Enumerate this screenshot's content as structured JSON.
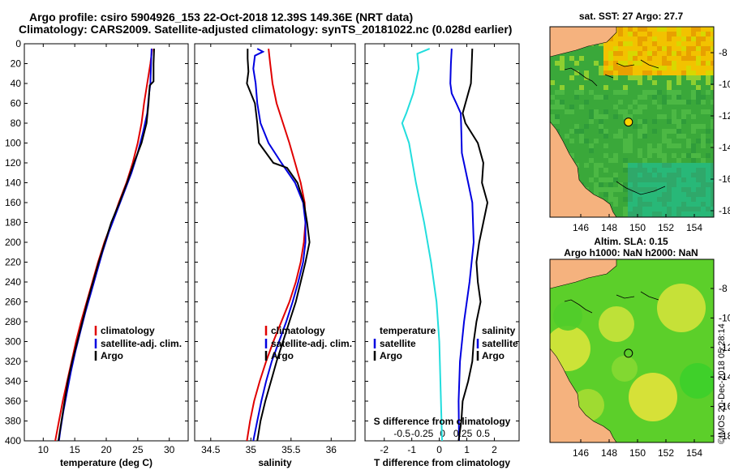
{
  "title": {
    "line1": "Argo profile: csiro 5904926_153 22-Oct-2018 12.39S 149.36E (NRT data)",
    "line2": "Climatology: CARS2009. Satellite-adjusted climatology: synTS_20181022.nc (0.028d earlier)"
  },
  "colors": {
    "climatology": "#e00000",
    "satellite": "#0000e0",
    "argo": "#000000",
    "sat_t": "#22dddd",
    "land": "#f5b27e"
  },
  "depth_ticks": [
    "0",
    "20",
    "40",
    "60",
    "80",
    "100",
    "120",
    "140",
    "160",
    "180",
    "200",
    "220",
    "240",
    "260",
    "280",
    "300",
    "320",
    "340",
    "360",
    "380",
    "400"
  ],
  "chart_data": [
    {
      "type": "line",
      "title": "",
      "xlabel": "temperature (deg C)",
      "ylabel": "depth",
      "xlim": [
        7,
        33
      ],
      "ylim": [
        0,
        400
      ],
      "xticks": [
        10,
        15,
        20,
        25,
        30
      ],
      "legend": [
        "climatology",
        "satellite-adj. clim.",
        "Argo"
      ],
      "series": [
        {
          "name": "climatology",
          "color": "#e00000",
          "points": [
            [
              27.3,
              5
            ],
            [
              27.0,
              20
            ],
            [
              26.5,
              40
            ],
            [
              26.0,
              60
            ],
            [
              25.6,
              80
            ],
            [
              25.0,
              100
            ],
            [
              24.2,
              120
            ],
            [
              23.2,
              140
            ],
            [
              22.0,
              160
            ],
            [
              20.9,
              180
            ],
            [
              19.7,
              200
            ],
            [
              18.7,
              220
            ],
            [
              17.8,
              240
            ],
            [
              16.9,
              260
            ],
            [
              16.0,
              280
            ],
            [
              15.2,
              300
            ],
            [
              14.5,
              320
            ],
            [
              13.8,
              340
            ],
            [
              13.1,
              360
            ],
            [
              12.5,
              380
            ],
            [
              11.9,
              400
            ]
          ]
        },
        {
          "name": "satellite-adj. clim.",
          "color": "#0000e0",
          "points": [
            [
              27.2,
              5
            ],
            [
              27.1,
              20
            ],
            [
              27.0,
              40
            ],
            [
              26.8,
              50
            ],
            [
              26.5,
              70
            ],
            [
              25.8,
              90
            ],
            [
              25.0,
              110
            ],
            [
              24.0,
              130
            ],
            [
              22.8,
              150
            ],
            [
              21.6,
              170
            ],
            [
              20.4,
              190
            ],
            [
              19.4,
              210
            ],
            [
              18.5,
              230
            ],
            [
              17.6,
              250
            ],
            [
              16.7,
              270
            ],
            [
              15.9,
              290
            ],
            [
              15.1,
              310
            ],
            [
              14.4,
              330
            ],
            [
              13.8,
              350
            ],
            [
              13.2,
              370
            ],
            [
              12.7,
              390
            ],
            [
              12.5,
              400
            ]
          ]
        },
        {
          "name": "Argo",
          "color": "#000000",
          "points": [
            [
              27.6,
              5
            ],
            [
              27.5,
              20
            ],
            [
              27.5,
              38
            ],
            [
              26.9,
              42
            ],
            [
              26.7,
              60
            ],
            [
              26.4,
              80
            ],
            [
              25.6,
              100
            ],
            [
              24.4,
              120
            ],
            [
              23.3,
              140
            ],
            [
              22.1,
              160
            ],
            [
              20.8,
              180
            ],
            [
              19.8,
              200
            ],
            [
              18.8,
              220
            ],
            [
              17.9,
              240
            ],
            [
              17.0,
              260
            ],
            [
              16.2,
              280
            ],
            [
              15.4,
              300
            ],
            [
              14.6,
              320
            ],
            [
              13.9,
              340
            ],
            [
              13.4,
              360
            ],
            [
              12.9,
              380
            ],
            [
              12.4,
              400
            ]
          ]
        }
      ]
    },
    {
      "type": "line",
      "title": "",
      "xlabel": "salinity",
      "ylabel": "depth",
      "xlim": [
        34.3,
        36.3
      ],
      "ylim": [
        0,
        400
      ],
      "xticks": [
        34.5,
        35,
        35.5,
        36
      ],
      "xticklabels": [
        "34.5",
        "35",
        "35.5",
        "36"
      ],
      "legend": [
        "climatology",
        "satellite-adj. clim.",
        "Argo"
      ],
      "series": [
        {
          "name": "climatology",
          "color": "#e00000",
          "points": [
            [
              35.22,
              5
            ],
            [
              35.24,
              20
            ],
            [
              35.27,
              40
            ],
            [
              35.32,
              60
            ],
            [
              35.4,
              80
            ],
            [
              35.48,
              100
            ],
            [
              35.55,
              120
            ],
            [
              35.62,
              140
            ],
            [
              35.67,
              160
            ],
            [
              35.68,
              180
            ],
            [
              35.66,
              200
            ],
            [
              35.62,
              220
            ],
            [
              35.56,
              240
            ],
            [
              35.48,
              260
            ],
            [
              35.38,
              280
            ],
            [
              35.28,
              300
            ],
            [
              35.19,
              320
            ],
            [
              35.11,
              340
            ],
            [
              35.04,
              360
            ],
            [
              34.99,
              380
            ],
            [
              34.95,
              400
            ]
          ]
        },
        {
          "name": "satellite-adj. clim.",
          "color": "#0000e0",
          "points": [
            [
              35.08,
              5
            ],
            [
              35.15,
              8
            ],
            [
              35.05,
              12
            ],
            [
              35.03,
              25
            ],
            [
              35.06,
              40
            ],
            [
              35.08,
              60
            ],
            [
              35.12,
              80
            ],
            [
              35.22,
              100
            ],
            [
              35.38,
              120
            ],
            [
              35.55,
              140
            ],
            [
              35.65,
              160
            ],
            [
              35.68,
              180
            ],
            [
              35.68,
              200
            ],
            [
              35.65,
              220
            ],
            [
              35.59,
              240
            ],
            [
              35.52,
              260
            ],
            [
              35.44,
              280
            ],
            [
              35.35,
              300
            ],
            [
              35.26,
              320
            ],
            [
              35.19,
              340
            ],
            [
              35.13,
              360
            ],
            [
              35.08,
              380
            ],
            [
              35.03,
              400
            ]
          ]
        },
        {
          "name": "Argo",
          "color": "#000000",
          "points": [
            [
              34.96,
              5
            ],
            [
              34.96,
              15
            ],
            [
              34.97,
              28
            ],
            [
              34.95,
              40
            ],
            [
              35.05,
              60
            ],
            [
              35.08,
              80
            ],
            [
              35.1,
              100
            ],
            [
              35.28,
              120
            ],
            [
              35.45,
              125
            ],
            [
              35.58,
              140
            ],
            [
              35.66,
              160
            ],
            [
              35.7,
              180
            ],
            [
              35.73,
              200
            ],
            [
              35.68,
              220
            ],
            [
              35.62,
              240
            ],
            [
              35.56,
              260
            ],
            [
              35.48,
              280
            ],
            [
              35.4,
              300
            ],
            [
              35.32,
              320
            ],
            [
              35.25,
              340
            ],
            [
              35.18,
              360
            ],
            [
              35.12,
              380
            ],
            [
              35.08,
              400
            ]
          ]
        }
      ]
    },
    {
      "type": "line",
      "title": "",
      "xlabel": "T difference from climatology",
      "xlabel_top": "S difference from climatology",
      "ylabel": "depth",
      "xlim": [
        -2.7,
        2.9
      ],
      "ylim": [
        0,
        400
      ],
      "xticks": [
        -2,
        -1,
        0,
        1,
        2
      ],
      "xticks_top": [
        "-0.5",
        "-0.25",
        "0",
        "0.25",
        "0.5"
      ],
      "legend": [
        "temperature",
        "satellite",
        "Argo",
        "salinity",
        "satellite",
        "Argo"
      ],
      "series": [
        {
          "name": "satellite T",
          "color": "#22dddd",
          "points": [
            [
              -0.35,
              5
            ],
            [
              -0.8,
              10
            ],
            [
              -0.75,
              25
            ],
            [
              -0.95,
              50
            ],
            [
              -1.2,
              70
            ],
            [
              -1.35,
              80
            ],
            [
              -1.1,
              100
            ],
            [
              -0.85,
              140
            ],
            [
              -0.55,
              180
            ],
            [
              -0.3,
              220
            ],
            [
              -0.1,
              260
            ],
            [
              0.0,
              300
            ],
            [
              0.05,
              350
            ],
            [
              0.1,
              400
            ]
          ]
        },
        {
          "name": "satellite",
          "color": "#0000e0",
          "points": [
            [
              0.45,
              5
            ],
            [
              0.42,
              20
            ],
            [
              0.4,
              40
            ],
            [
              0.45,
              50
            ],
            [
              0.62,
              60
            ],
            [
              0.78,
              70
            ],
            [
              0.8,
              90
            ],
            [
              0.82,
              110
            ],
            [
              1.05,
              140
            ],
            [
              1.2,
              160
            ],
            [
              1.25,
              200
            ],
            [
              1.1,
              240
            ],
            [
              0.9,
              280
            ],
            [
              0.75,
              320
            ],
            [
              0.7,
              360
            ],
            [
              0.72,
              400
            ]
          ]
        },
        {
          "name": "Argo",
          "color": "#000000",
          "points": [
            [
              1.2,
              5
            ],
            [
              1.18,
              20
            ],
            [
              1.15,
              40
            ],
            [
              1.05,
              50
            ],
            [
              0.85,
              70
            ],
            [
              0.95,
              80
            ],
            [
              1.4,
              100
            ],
            [
              1.6,
              120
            ],
            [
              1.55,
              140
            ],
            [
              1.75,
              160
            ],
            [
              1.6,
              180
            ],
            [
              1.45,
              200
            ],
            [
              1.35,
              220
            ],
            [
              1.4,
              240
            ],
            [
              1.5,
              260
            ],
            [
              1.35,
              280
            ],
            [
              1.25,
              300
            ],
            [
              1.2,
              320
            ],
            [
              1.05,
              340
            ],
            [
              0.85,
              360
            ],
            [
              0.8,
              380
            ],
            [
              0.7,
              400
            ]
          ]
        }
      ]
    }
  ],
  "panels": {
    "p1_legend": [
      "climatology",
      "satellite-adj. clim.",
      "Argo"
    ],
    "p2_legend": [
      "climatology",
      "satellite-adj. clim.",
      "Argo"
    ],
    "p3_legend_left": [
      "temperature",
      "satellite",
      "Argo"
    ],
    "p3_legend_right": [
      "salinity",
      "satellite",
      "Argo"
    ]
  },
  "maps": {
    "sst_title": "sat. SST: 27 Argo: 27.7",
    "sla_title1": "Altim. SLA: 0.15",
    "sla_title2": "Argo h1000: NaN h2000: NaN",
    "lat_ticks": [
      "-8",
      "-10",
      "-12",
      "-14",
      "-16",
      "-18"
    ],
    "lon_ticks": [
      "146",
      "148",
      "150",
      "152",
      "154"
    ],
    "argo_lon": 149.36,
    "argo_lat": -12.39
  },
  "credit": "©IMOS 20-Dec-2018 05:28:14"
}
